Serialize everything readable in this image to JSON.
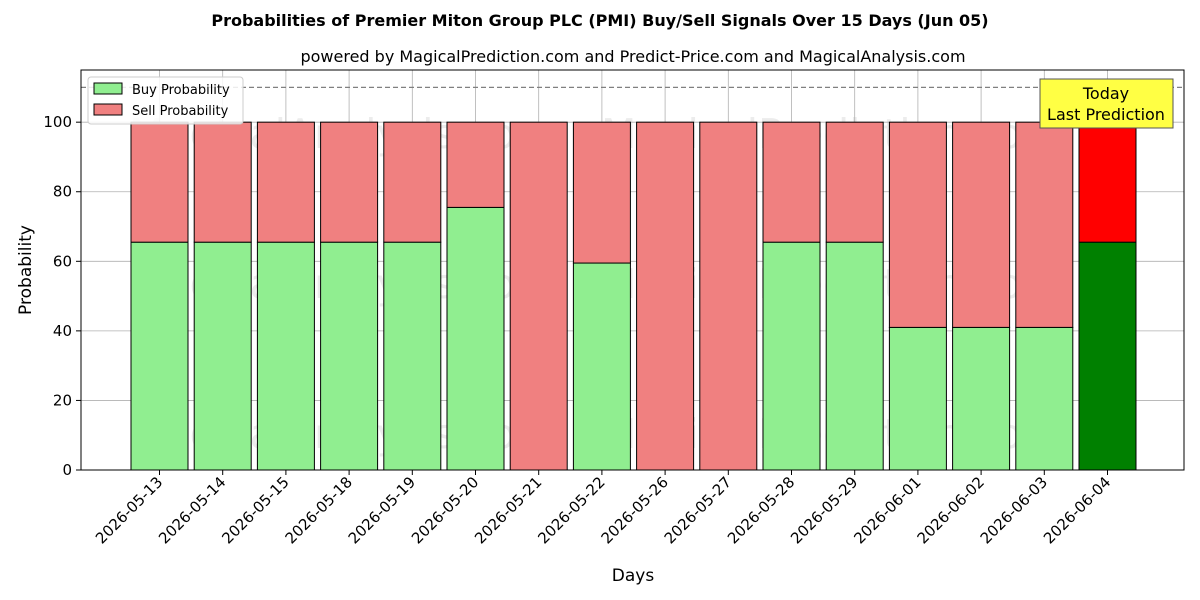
{
  "chart_data": {
    "type": "bar",
    "title": "Probabilities of Premier Miton Group PLC (PMI) Buy/Sell Signals Over 15 Days (Jun 05)",
    "subtitle": "powered by MagicalPrediction.com and Predict-Price.com and MagicalAnalysis.com",
    "xlabel": "Days",
    "ylabel": "Probability",
    "ylim": [
      0,
      115
    ],
    "yticks": [
      0,
      20,
      40,
      60,
      80,
      100
    ],
    "grid": true,
    "stacked": true,
    "legend_position": "top-left",
    "reference_line": {
      "y": 110,
      "style": "dashed",
      "color": "#808080"
    },
    "categories": [
      "2026-05-13",
      "2026-05-14",
      "2026-05-15",
      "2026-05-18",
      "2026-05-19",
      "2026-05-20",
      "2026-05-21",
      "2026-05-22",
      "2026-05-26",
      "2026-05-27",
      "2026-05-28",
      "2026-05-29",
      "2026-06-01",
      "2026-06-02",
      "2026-06-03",
      "2026-06-04"
    ],
    "series": [
      {
        "name": "Buy Probability",
        "color": "#90ee90",
        "highlight_color": "#008000",
        "values": [
          65.5,
          65.5,
          65.5,
          65.5,
          65.5,
          75.5,
          0,
          59.5,
          0,
          0,
          65.5,
          65.5,
          41,
          41,
          41,
          65.5
        ]
      },
      {
        "name": "Sell Probability",
        "color": "#f08080",
        "highlight_color": "#ff0000",
        "values": [
          34.5,
          34.5,
          34.5,
          34.5,
          34.5,
          24.5,
          100,
          40.5,
          100,
          100,
          34.5,
          34.5,
          59,
          59,
          59,
          34.5
        ]
      }
    ],
    "highlight_index": 15,
    "annotation": {
      "lines": [
        "Today",
        "Last Prediction"
      ],
      "background": "#ffff44"
    },
    "watermarks": [
      "MagicalAnalysis.com",
      "MagicalPrediction.com"
    ]
  }
}
